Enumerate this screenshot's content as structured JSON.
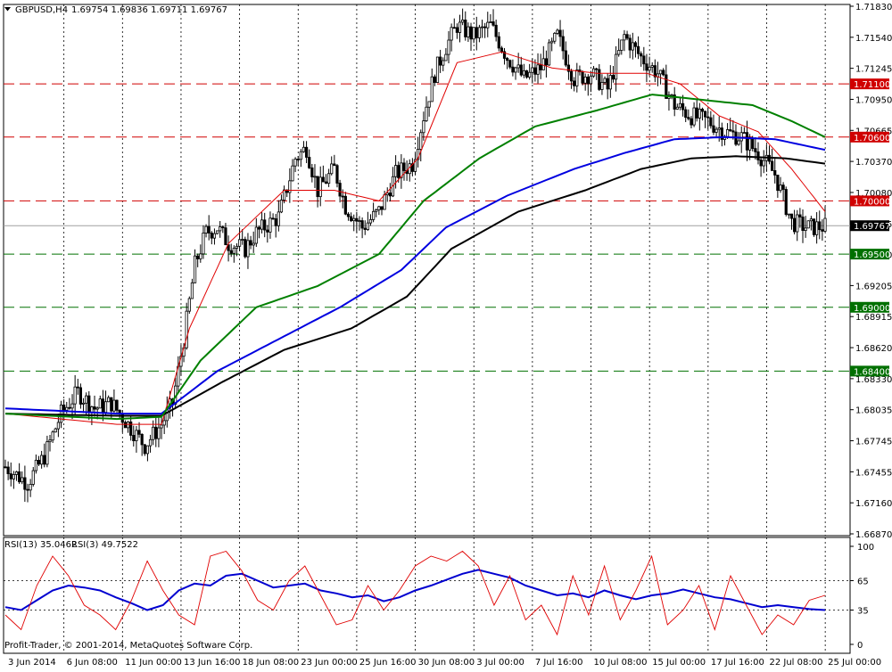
{
  "header": {
    "symbol_label": "GBPUSD,H4",
    "ohlc": "1.69754 1.69836 1.69711 1.69767"
  },
  "footer": {
    "copyright": "Profit-Trader, © 2001-2014, MetaQuotes Software Corp."
  },
  "rsi_header": {
    "rsi13": "RSI(13) 35.0462",
    "rsi3": "RSI(3) 49.7522"
  },
  "colors": {
    "background": "#ffffff",
    "frame": "#000000",
    "candle": "#000000",
    "ma_red": "#e00000",
    "ma_green": "#008000",
    "ma_blue": "#0000e0",
    "ma_black": "#000000",
    "level_red": "#d00000",
    "level_green": "#007000",
    "rsi13": "#0000d0",
    "rsi3": "#e00000",
    "current_price_line": "#a0a0a0"
  },
  "chart_data": [
    {
      "type": "candlestick",
      "panel": "price",
      "title": "GBPUSD,H4",
      "ylim": [
        1.6687,
        1.7183
      ],
      "y_ticks": [
        "1.71830",
        "1.71540",
        "1.71245",
        "1.70950",
        "1.70665",
        "1.70370",
        "1.70080",
        "1.69785",
        "1.69500",
        "1.69205",
        "1.68915",
        "1.68620",
        "1.68330",
        "1.68035",
        "1.67745",
        "1.67455",
        "1.67160",
        "1.66870"
      ],
      "x_ticks": [
        "3 Jun 2014",
        "6 Jun 08:00",
        "11 Jun 00:00",
        "13 Jun 16:00",
        "18 Jun 08:00",
        "23 Jun 00:00",
        "25 Jun 16:00",
        "30 Jun 08:00",
        "3 Jul 00:00",
        "7 Jul 16:00",
        "10 Jul 08:00",
        "15 Jul 00:00",
        "17 Jul 16:00",
        "22 Jul 08:00",
        "25 Jul 00:00"
      ],
      "grid": "vertical-dotted",
      "current_price": {
        "label": "1.69767",
        "value": 1.69767
      },
      "levels": [
        {
          "label": "1.71100",
          "value": 1.711,
          "color": "red"
        },
        {
          "label": "1.70600",
          "value": 1.706,
          "color": "red"
        },
        {
          "label": "1.70000",
          "value": 1.7,
          "color": "red"
        },
        {
          "label": "1.69500",
          "value": 1.695,
          "color": "green"
        },
        {
          "label": "1.69000",
          "value": 1.69,
          "color": "green"
        },
        {
          "label": "1.68400",
          "value": 1.684,
          "color": "green"
        }
      ],
      "price_path": [
        [
          0,
          1.675
        ],
        [
          8,
          1.6735
        ],
        [
          14,
          1.676
        ],
        [
          20,
          1.68
        ],
        [
          26,
          1.682
        ],
        [
          32,
          1.6805
        ],
        [
          38,
          1.681
        ],
        [
          44,
          1.679
        ],
        [
          50,
          1.677
        ],
        [
          56,
          1.679
        ],
        [
          60,
          1.681
        ],
        [
          64,
          1.687
        ],
        [
          68,
          1.694
        ],
        [
          72,
          1.697
        ],
        [
          76,
          1.6975
        ],
        [
          80,
          1.696
        ],
        [
          86,
          1.6955
        ],
        [
          90,
          1.697
        ],
        [
          98,
          1.6985
        ],
        [
          104,
          1.704
        ],
        [
          108,
          1.705
        ],
        [
          112,
          1.701
        ],
        [
          118,
          1.703
        ],
        [
          122,
          1.6995
        ],
        [
          128,
          1.6975
        ],
        [
          134,
          1.699
        ],
        [
          140,
          1.7025
        ],
        [
          146,
          1.7035
        ],
        [
          150,
          1.708
        ],
        [
          154,
          1.712
        ],
        [
          158,
          1.7145
        ],
        [
          162,
          1.7165
        ],
        [
          168,
          1.7155
        ],
        [
          174,
          1.7165
        ],
        [
          180,
          1.7135
        ],
        [
          186,
          1.7115
        ],
        [
          192,
          1.7125
        ],
        [
          198,
          1.7155
        ],
        [
          204,
          1.7115
        ],
        [
          210,
          1.712
        ],
        [
          216,
          1.7105
        ],
        [
          222,
          1.7155
        ],
        [
          228,
          1.7135
        ],
        [
          234,
          1.712
        ],
        [
          240,
          1.709
        ],
        [
          246,
          1.708
        ],
        [
          252,
          1.7075
        ],
        [
          258,
          1.7065
        ],
        [
          264,
          1.706
        ],
        [
          270,
          1.7045
        ],
        [
          276,
          1.7025
        ],
        [
          282,
          1.698
        ],
        [
          288,
          1.6975
        ],
        [
          294,
          1.6976
        ]
      ],
      "ma_red_path": [
        [
          0,
          1.68
        ],
        [
          40,
          1.679
        ],
        [
          56,
          1.679
        ],
        [
          66,
          1.688
        ],
        [
          80,
          1.696
        ],
        [
          100,
          1.701
        ],
        [
          118,
          1.701
        ],
        [
          134,
          1.7
        ],
        [
          148,
          1.704
        ],
        [
          162,
          1.713
        ],
        [
          178,
          1.714
        ],
        [
          196,
          1.7125
        ],
        [
          212,
          1.712
        ],
        [
          230,
          1.712
        ],
        [
          242,
          1.711
        ],
        [
          256,
          1.708
        ],
        [
          270,
          1.7065
        ],
        [
          282,
          1.703
        ],
        [
          294,
          1.699
        ]
      ],
      "ma_green_path": [
        [
          0,
          1.68
        ],
        [
          40,
          1.6795
        ],
        [
          56,
          1.6797
        ],
        [
          70,
          1.685
        ],
        [
          90,
          1.69
        ],
        [
          112,
          1.692
        ],
        [
          134,
          1.695
        ],
        [
          150,
          1.7
        ],
        [
          170,
          1.704
        ],
        [
          190,
          1.707
        ],
        [
          212,
          1.7085
        ],
        [
          232,
          1.71
        ],
        [
          250,
          1.7095
        ],
        [
          268,
          1.709
        ],
        [
          282,
          1.7075
        ],
        [
          294,
          1.706
        ]
      ],
      "ma_blue_path": [
        [
          0,
          1.6805
        ],
        [
          40,
          1.68
        ],
        [
          56,
          1.68
        ],
        [
          76,
          1.684
        ],
        [
          98,
          1.687
        ],
        [
          120,
          1.69
        ],
        [
          142,
          1.6935
        ],
        [
          158,
          1.6975
        ],
        [
          180,
          1.7005
        ],
        [
          204,
          1.703
        ],
        [
          222,
          1.7045
        ],
        [
          240,
          1.7058
        ],
        [
          258,
          1.706
        ],
        [
          276,
          1.7058
        ],
        [
          294,
          1.7048
        ]
      ],
      "ma_black_path": [
        [
          0,
          1.68
        ],
        [
          40,
          1.6798
        ],
        [
          56,
          1.6798
        ],
        [
          78,
          1.683
        ],
        [
          100,
          1.686
        ],
        [
          124,
          1.688
        ],
        [
          144,
          1.691
        ],
        [
          160,
          1.6955
        ],
        [
          184,
          1.699
        ],
        [
          208,
          1.701
        ],
        [
          228,
          1.703
        ],
        [
          246,
          1.704
        ],
        [
          262,
          1.7042
        ],
        [
          280,
          1.704
        ],
        [
          294,
          1.7035
        ]
      ]
    },
    {
      "type": "line",
      "panel": "rsi",
      "title": "RSI(13) 35.0462 RSI(3) 49.7522",
      "ylim": [
        0,
        100
      ],
      "y_ticks": [
        "100",
        "65",
        "35",
        "0"
      ],
      "levels": [
        65,
        35
      ],
      "series": [
        {
          "name": "RSI(13)",
          "color": "blue",
          "values": [
            38,
            35,
            45,
            55,
            60,
            58,
            55,
            48,
            42,
            35,
            40,
            55,
            62,
            60,
            70,
            72,
            65,
            58,
            60,
            62,
            55,
            52,
            48,
            50,
            44,
            48,
            55,
            60,
            66,
            72,
            76,
            72,
            68,
            60,
            55,
            50,
            52,
            48,
            55,
            50,
            46,
            50,
            52,
            56,
            52,
            48,
            46,
            42,
            38,
            40,
            38,
            36,
            35
          ]
        },
        {
          "name": "RSI(3)",
          "color": "red",
          "values": [
            30,
            15,
            60,
            90,
            70,
            40,
            30,
            15,
            45,
            85,
            55,
            30,
            20,
            90,
            95,
            75,
            45,
            35,
            65,
            80,
            50,
            20,
            25,
            60,
            35,
            55,
            80,
            90,
            85,
            95,
            80,
            40,
            70,
            25,
            40,
            10,
            70,
            30,
            80,
            25,
            55,
            90,
            20,
            35,
            60,
            15,
            70,
            40,
            10,
            30,
            20,
            45,
            50
          ]
        }
      ]
    }
  ]
}
